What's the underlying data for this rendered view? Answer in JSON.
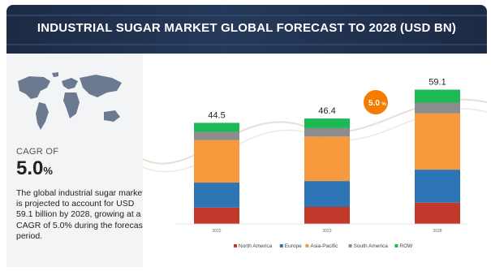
{
  "header": {
    "title": "INDUSTRIAL SUGAR MARKET GLOBAL FORECAST TO 2028 (USD BN)"
  },
  "summary": {
    "cagr_label": "CAGR OF",
    "cagr_value": "5.0",
    "cagr_pct": "%",
    "description": "The global industrial sugar market is projected to account for USD 59.1 billion by 2028, growing at a CAGR of 5.0% during the forecast period."
  },
  "chart_data": {
    "type": "bar",
    "stacked": true,
    "categories": [
      "2022",
      "2023",
      "2028"
    ],
    "totals": [
      "44.5",
      "46.4",
      "59.1"
    ],
    "series": [
      {
        "name": "North America",
        "color": "#c0392b",
        "values": [
          7.2,
          7.5,
          9.4
        ]
      },
      {
        "name": "Europe",
        "color": "#2e75b6",
        "values": [
          11.0,
          11.4,
          14.5
        ]
      },
      {
        "name": "Asia-Pacific",
        "color": "#f79a3e",
        "values": [
          18.7,
          19.5,
          24.8
        ]
      },
      {
        "name": "South America",
        "color": "#8c8c8c",
        "values": [
          3.6,
          3.8,
          4.7
        ]
      },
      {
        "name": "ROW",
        "color": "#1db954",
        "values": [
          4.0,
          4.2,
          5.7
        ]
      }
    ],
    "annotation": {
      "text": "5.0",
      "suffix": "%",
      "color": "#f57c00"
    },
    "legend_placement": "bottom",
    "ylim": [
      0,
      65
    ],
    "grid": false
  }
}
